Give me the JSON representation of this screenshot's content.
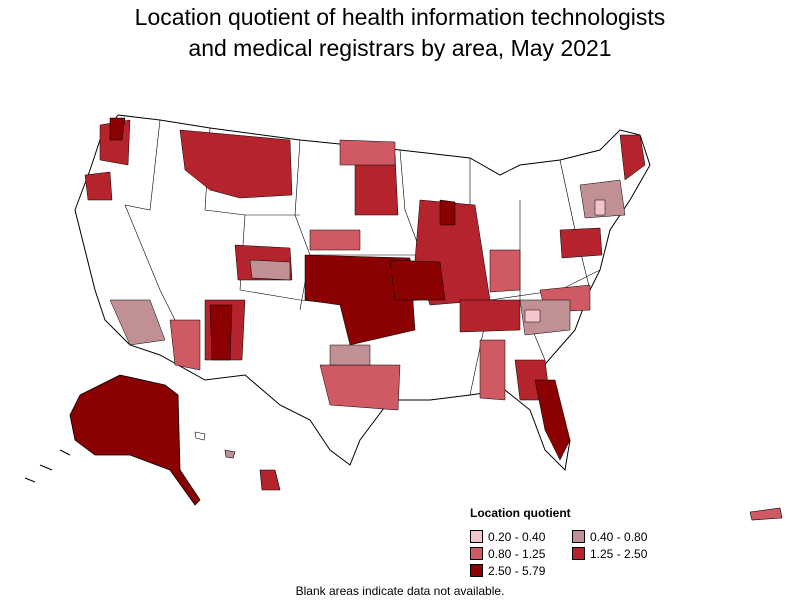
{
  "title_line1": "Location quotient of health information technologists",
  "title_line2": "and medical registrars by area, May 2021",
  "legend": {
    "title": "Location quotient",
    "items": [
      {
        "label": "0.20 - 0.40",
        "color": "#f4c6cc"
      },
      {
        "label": "0.40 - 0.80",
        "color": "#c09094"
      },
      {
        "label": "0.80 - 1.25",
        "color": "#cf5a64"
      },
      {
        "label": "1.25 - 2.50",
        "color": "#b5242c"
      },
      {
        "label": "2.50 - 5.79",
        "color": "#8b0000"
      }
    ]
  },
  "footnote": "Blank areas indicate data not available.",
  "colors": {
    "background": "#ffffff",
    "border": "#000000",
    "no_data": "#ffffff"
  }
}
